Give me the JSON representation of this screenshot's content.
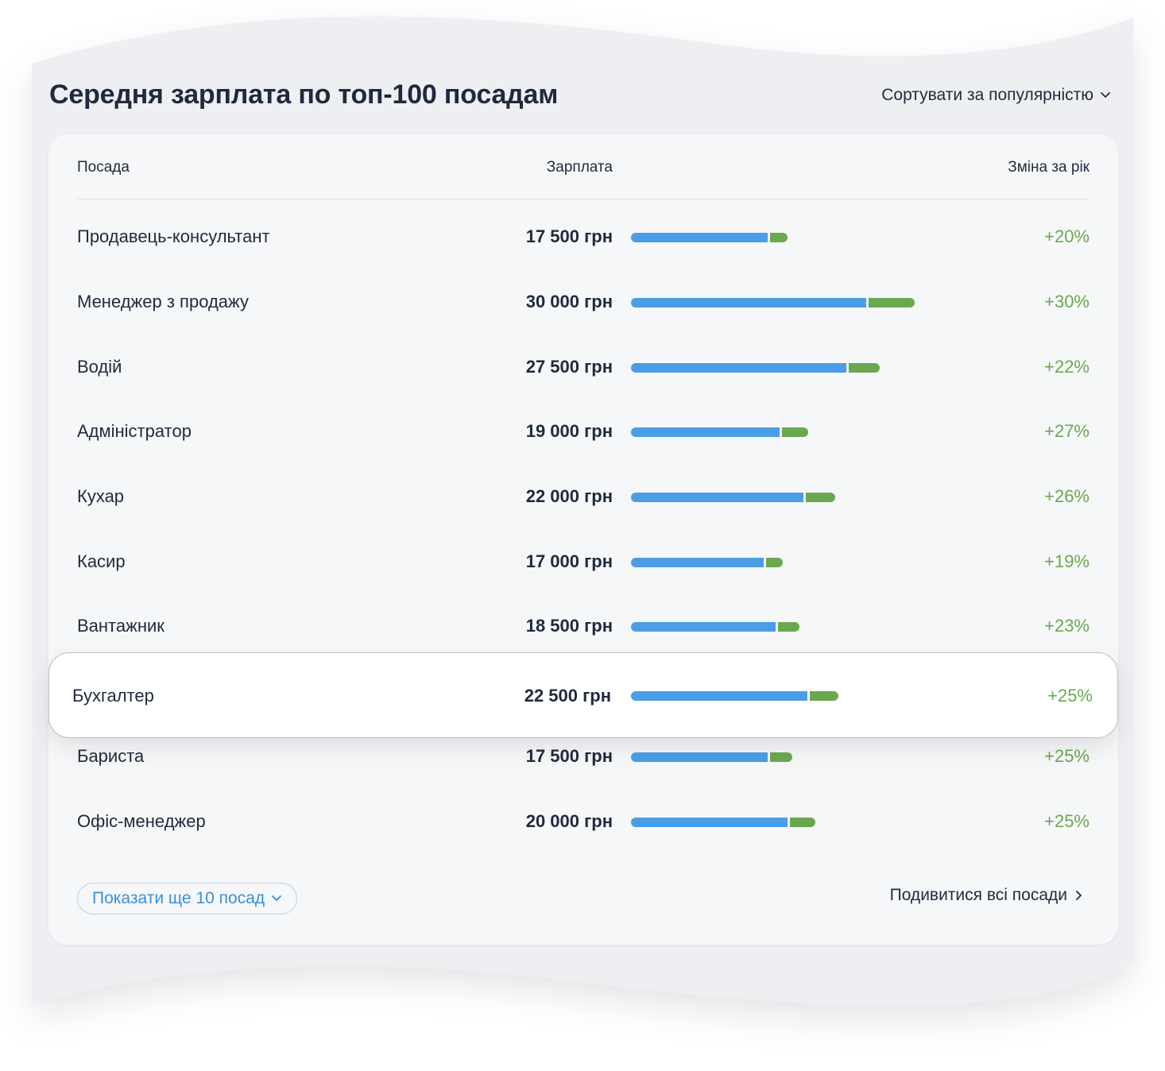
{
  "header": {
    "title": "Середня зарплата по топ-100 посадам",
    "sort_label": "Сортувати за популярністю"
  },
  "table": {
    "columns": [
      "Посада",
      "Зарплата",
      "Зміна за рік"
    ],
    "rows": [
      {
        "position": "Продавець-консультант",
        "salary": "17 500 грн",
        "salary_value": 17500,
        "change": "+20%",
        "change_value": 20
      },
      {
        "position": "Менеджер з продажу",
        "salary": "30 000 грн",
        "salary_value": 30000,
        "change": "+30%",
        "change_value": 30
      },
      {
        "position": "Водій",
        "salary": "27 500 грн",
        "salary_value": 27500,
        "change": "+22%",
        "change_value": 22
      },
      {
        "position": "Адміністратор",
        "salary": "19 000 грн",
        "salary_value": 19000,
        "change": "+27%",
        "change_value": 27
      },
      {
        "position": "Кухар",
        "salary": "22 000 грн",
        "salary_value": 22000,
        "change": "+26%",
        "change_value": 26
      },
      {
        "position": "Касир",
        "salary": "17 000 грн",
        "salary_value": 17000,
        "change": "+19%",
        "change_value": 19
      },
      {
        "position": "Вантажник",
        "salary": "18 500 грн",
        "salary_value": 18500,
        "change": "+23%",
        "change_value": 23
      },
      {
        "position": "Бухгалтер",
        "salary": "22 500 грн",
        "salary_value": 22500,
        "change": "+25%",
        "change_value": 25,
        "highlighted": true
      },
      {
        "position": "Бариста",
        "salary": "17 500 грн",
        "salary_value": 17500,
        "change": "+25%",
        "change_value": 25
      },
      {
        "position": "Офіс-менеджер",
        "salary": "20 000 грн",
        "salary_value": 20000,
        "change": "+25%",
        "change_value": 25
      }
    ]
  },
  "footer": {
    "more_label": "Показати ще 10 посад",
    "all_label": "Подивитися всі посади"
  },
  "colors": {
    "base_bar": "#4a9de6",
    "growth_bar": "#6aa84f",
    "link_blue": "#3b8fd9",
    "text": "#1f2a3d"
  },
  "icons": {
    "sort": "chevron-down-icon",
    "more": "chevron-down-icon",
    "all": "chevron-right-icon"
  }
}
